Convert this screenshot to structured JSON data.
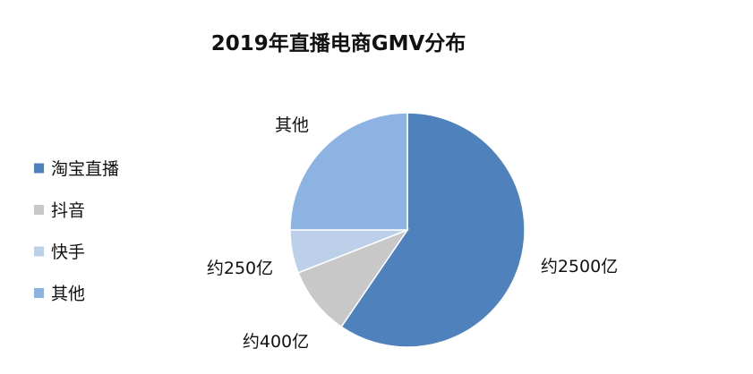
{
  "chart_data": {
    "type": "pie",
    "title": "2019年直播电商GMV分布",
    "categories": [
      "淘宝直播",
      "抖音",
      "快手",
      "其他"
    ],
    "values": [
      2500,
      400,
      250,
      1050
    ],
    "data_labels": [
      "约2500亿",
      "约400亿",
      "约250亿",
      "其他"
    ],
    "colors": [
      "#4f81bd",
      "#c8c8c8",
      "#bcd0ea",
      "#8db3e2"
    ],
    "legend_position": "left",
    "start_angle": "12 o'clock",
    "direction": "clockwise"
  }
}
